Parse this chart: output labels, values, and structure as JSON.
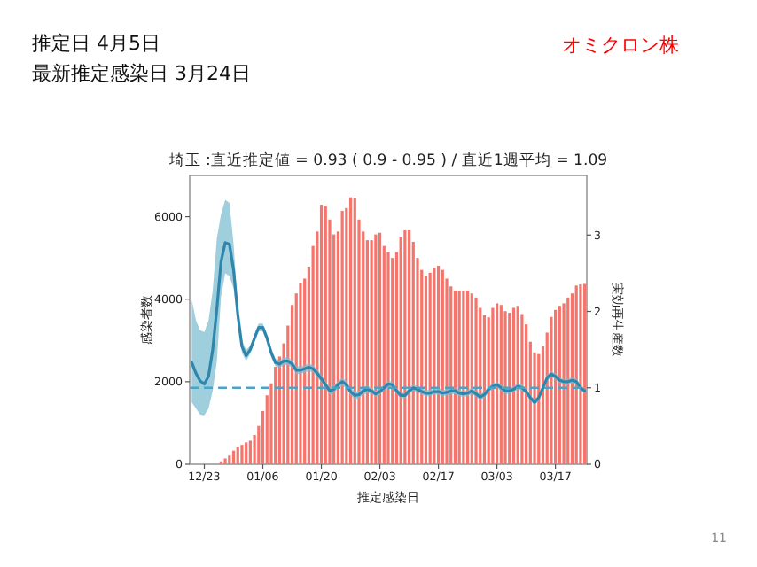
{
  "chart_data": {
    "type": "bar",
    "title": "埼玉 :直近推定値 = 0.93 ( 0.9 - 0.95 ) / 直近1週平均 = 1.09",
    "xlabel": "推定感染日",
    "ylabel": "感染者数",
    "y2label": "実効再生産数",
    "annotations": [
      "推定日  4月5日",
      "最新推定感染日  3月24日",
      "オミクロン株",
      "11"
    ],
    "categories": [
      null,
      null,
      null,
      "12/23",
      null,
      null,
      null,
      null,
      null,
      null,
      null,
      null,
      null,
      null,
      null,
      null,
      null,
      "01/06",
      null,
      null,
      null,
      null,
      null,
      null,
      null,
      null,
      null,
      null,
      null,
      null,
      null,
      "01/20",
      null,
      null,
      null,
      null,
      null,
      null,
      null,
      null,
      null,
      null,
      null,
      null,
      null,
      "02/03",
      null,
      null,
      null,
      null,
      null,
      null,
      null,
      null,
      null,
      null,
      null,
      null,
      null,
      "02/17",
      null,
      null,
      null,
      null,
      null,
      null,
      null,
      null,
      null,
      null,
      null,
      null,
      null,
      "03/03",
      null,
      null,
      null,
      null,
      null,
      null,
      null,
      null,
      null,
      null,
      null,
      null,
      null,
      "03/17",
      null,
      null,
      null,
      null,
      null,
      null,
      null
    ],
    "ylim": [
      0,
      7000
    ],
    "yticks": [
      0,
      2000,
      4000,
      6000
    ],
    "y2lim": [
      0,
      3.78
    ],
    "y2ticks": [
      0,
      1,
      2,
      3
    ],
    "ref_lines": [
      {
        "axis": "y2",
        "value": 1,
        "color": "#4aa3c8",
        "line_style": "dashed"
      }
    ],
    "series": [
      {
        "color": "#f5756c",
        "values": [
          0,
          0,
          0,
          0,
          0,
          null,
          null,
          70,
          140,
          210,
          330,
          430,
          470,
          530,
          570,
          710,
          930,
          1290,
          1670,
          1960,
          2360,
          2610,
          2930,
          3360,
          3860,
          4140,
          4390,
          4500,
          4790,
          5290,
          5640,
          6290,
          6260,
          5930,
          5570,
          5640,
          6140,
          6210,
          6470,
          6460,
          5930,
          5640,
          5430,
          5430,
          5570,
          5610,
          5290,
          5140,
          5000,
          5140,
          5500,
          5670,
          5670,
          5390,
          5000,
          4710,
          4570,
          4640,
          4760,
          4810,
          4710,
          4500,
          4310,
          4210,
          4210,
          4210,
          4210,
          4140,
          4040,
          3790,
          3610,
          3560,
          3790,
          3900,
          3860,
          3710,
          3670,
          3790,
          3840,
          3640,
          3390,
          2970,
          2710,
          2670,
          2860,
          3190,
          3570,
          3740,
          3840,
          3900,
          4040,
          4140,
          4330,
          4360,
          4370
        ]
      },
      {
        "type": "line",
        "axis": "y2",
        "color": "#2f86ad",
        "values": [
          1.33,
          1.19,
          1.09,
          1.05,
          1.15,
          1.5,
          2.04,
          2.65,
          2.9,
          2.88,
          2.54,
          1.96,
          1.54,
          1.42,
          1.5,
          1.65,
          1.79,
          1.79,
          1.65,
          1.46,
          1.33,
          1.31,
          1.35,
          1.35,
          1.31,
          1.23,
          1.23,
          1.25,
          1.27,
          1.25,
          1.19,
          1.12,
          1.04,
          0.96,
          0.98,
          1.04,
          1.08,
          1.04,
          0.95,
          0.9,
          0.91,
          0.96,
          0.98,
          0.96,
          0.92,
          0.95,
          1.0,
          1.05,
          1.04,
          0.96,
          0.9,
          0.9,
          0.96,
          1.0,
          0.98,
          0.95,
          0.93,
          0.93,
          0.95,
          0.95,
          0.93,
          0.94,
          0.96,
          0.96,
          0.93,
          0.92,
          0.93,
          0.96,
          0.92,
          0.88,
          0.91,
          0.98,
          1.02,
          1.04,
          1.0,
          0.96,
          0.96,
          0.98,
          1.02,
          1.0,
          0.95,
          0.87,
          0.81,
          0.87,
          1.0,
          1.13,
          1.18,
          1.15,
          1.1,
          1.08,
          1.08,
          1.1,
          1.08,
          1.0,
          0.96
        ],
        "lower": [
          0.81,
          0.73,
          0.65,
          0.64,
          0.73,
          0.96,
          1.35,
          2.19,
          2.5,
          2.46,
          2.3,
          1.88,
          1.46,
          1.35,
          1.45,
          1.6,
          1.74,
          1.74,
          1.6,
          1.41,
          1.28,
          1.26,
          1.3,
          1.3,
          1.26,
          1.18,
          1.18,
          1.2,
          1.22,
          1.2,
          1.14,
          1.07,
          0.99,
          0.91,
          0.93,
          0.99,
          1.03,
          0.99,
          0.9,
          0.85,
          0.86,
          0.91,
          0.93,
          0.92,
          0.88,
          0.91,
          0.96,
          1.01,
          1.0,
          0.92,
          0.86,
          0.86,
          0.92,
          0.96,
          0.94,
          0.91,
          0.89,
          0.89,
          0.91,
          0.91,
          0.89,
          0.9,
          0.92,
          0.92,
          0.89,
          0.88,
          0.89,
          0.92,
          0.88,
          0.84,
          0.87,
          0.94,
          0.98,
          1.0,
          0.96,
          0.92,
          0.92,
          0.94,
          0.98,
          0.96,
          0.91,
          0.83,
          0.77,
          0.83,
          0.96,
          1.09,
          1.14,
          1.11,
          1.06,
          1.04,
          1.04,
          1.06,
          1.04,
          0.96,
          0.92
        ],
        "upper": [
          2.15,
          1.88,
          1.75,
          1.73,
          1.88,
          2.27,
          2.96,
          3.27,
          3.46,
          3.42,
          2.88,
          2.04,
          1.62,
          1.5,
          1.55,
          1.7,
          1.84,
          1.84,
          1.7,
          1.51,
          1.38,
          1.36,
          1.4,
          1.4,
          1.36,
          1.28,
          1.28,
          1.3,
          1.32,
          1.3,
          1.24,
          1.17,
          1.09,
          1.01,
          1.03,
          1.09,
          1.13,
          1.09,
          1.0,
          0.95,
          0.96,
          1.01,
          1.03,
          1.0,
          0.96,
          0.99,
          1.04,
          1.09,
          1.08,
          1.0,
          0.94,
          0.94,
          1.0,
          1.04,
          1.02,
          0.99,
          0.97,
          0.97,
          0.99,
          0.99,
          0.97,
          0.98,
          1.0,
          1.0,
          0.97,
          0.96,
          0.97,
          1.0,
          0.96,
          0.92,
          0.95,
          1.02,
          1.06,
          1.08,
          1.04,
          1.0,
          1.0,
          1.02,
          1.06,
          1.04,
          0.99,
          0.91,
          0.85,
          0.91,
          1.04,
          1.17,
          1.22,
          1.19,
          1.14,
          1.12,
          1.12,
          1.14,
          1.12,
          1.04,
          1.0
        ]
      }
    ]
  }
}
